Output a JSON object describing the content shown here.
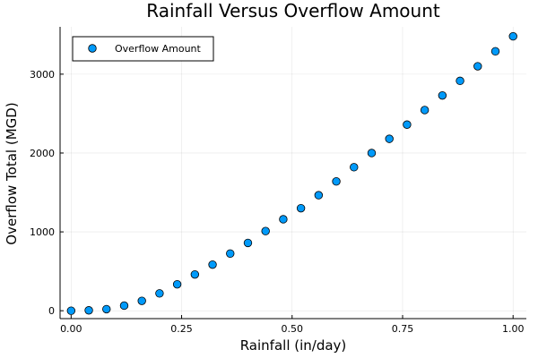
{
  "chart_data": {
    "type": "scatter",
    "title": "Rainfall Versus Overflow Amount",
    "xlabel": "Rainfall (in/day)",
    "ylabel": "Overflow Total (MGD)",
    "xlim": [
      -0.025,
      1.03
    ],
    "ylim": [
      -100,
      3600
    ],
    "xticks": [
      0.0,
      0.25,
      0.5,
      0.75,
      1.0
    ],
    "xtick_labels": [
      "0.00",
      "0.25",
      "0.50",
      "0.75",
      "1.00"
    ],
    "yticks": [
      0,
      1000,
      2000,
      3000
    ],
    "ytick_labels": [
      "0",
      "1000",
      "2000",
      "3000"
    ],
    "grid": true,
    "legend_position": "top-left",
    "series": [
      {
        "name": "Overflow Amount",
        "color": "#009AFA",
        "x": [
          0.0,
          0.04,
          0.08,
          0.12,
          0.16,
          0.2,
          0.24,
          0.28,
          0.32,
          0.36,
          0.4,
          0.44,
          0.48,
          0.52,
          0.56,
          0.6,
          0.64,
          0.68,
          0.72,
          0.76,
          0.8,
          0.84,
          0.88,
          0.92,
          0.96,
          1.0
        ],
        "y": [
          0,
          5,
          20,
          65,
          125,
          220,
          335,
          460,
          585,
          725,
          860,
          1010,
          1160,
          1300,
          1465,
          1640,
          1820,
          2000,
          2180,
          2360,
          2545,
          2730,
          2915,
          3100,
          3290,
          3480
        ]
      }
    ]
  }
}
